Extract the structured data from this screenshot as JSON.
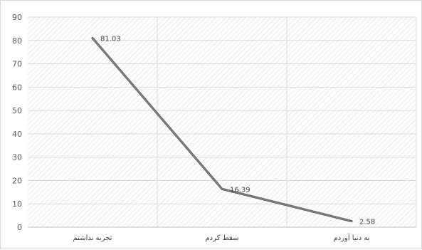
{
  "chart_data": {
    "type": "line",
    "categories": [
      "تجربه نداشتم",
      "سقط کردم",
      "به دنیا آوردم"
    ],
    "series": [
      {
        "values": [
          81.03,
          16.39,
          2.58
        ],
        "color": "#7f7f7f"
      }
    ],
    "data_labels": [
      "81.03",
      "16.39",
      "2.58"
    ],
    "y_ticks": [
      "0",
      "10",
      "20",
      "30",
      "40",
      "50",
      "60",
      "70",
      "80",
      "90"
    ],
    "ylim": [
      0,
      90
    ],
    "grid": true,
    "plot_fill": "diagonal-hatch",
    "title": "",
    "xlabel": "",
    "ylabel": ""
  }
}
